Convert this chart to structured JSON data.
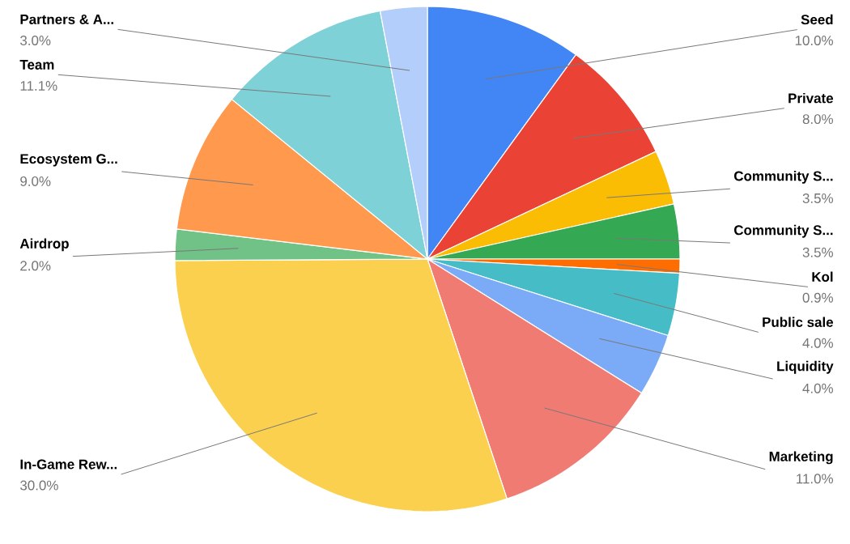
{
  "chart_data": {
    "type": "pie",
    "categories": [
      "Seed",
      "Private",
      "Community S...",
      "Community S...",
      "Kol",
      "Public sale",
      "Liquidity",
      "Marketing",
      "In-Game Rew...",
      "Airdrop",
      "Ecosystem G...",
      "Team",
      "Partners & A..."
    ],
    "values": [
      10.0,
      8.0,
      3.5,
      3.5,
      0.9,
      4.0,
      4.0,
      11.0,
      30.0,
      2.0,
      9.0,
      11.1,
      3.0
    ],
    "value_labels": [
      "10.0%",
      "8.0%",
      "3.5%",
      "3.5%",
      "0.9%",
      "4.0%",
      "4.0%",
      "11.0%",
      "30.0%",
      "2.0%",
      "9.0%",
      "11.1%",
      "3.0%"
    ],
    "colors": [
      "#4285f4",
      "#ea4335",
      "#fbbc04",
      "#34a853",
      "#ff6d01",
      "#46bdc6",
      "#7baaf7",
      "#f07b72",
      "#fcd04f",
      "#71c287",
      "#ff994d",
      "#7ed1d7",
      "#b3cefb"
    ]
  }
}
